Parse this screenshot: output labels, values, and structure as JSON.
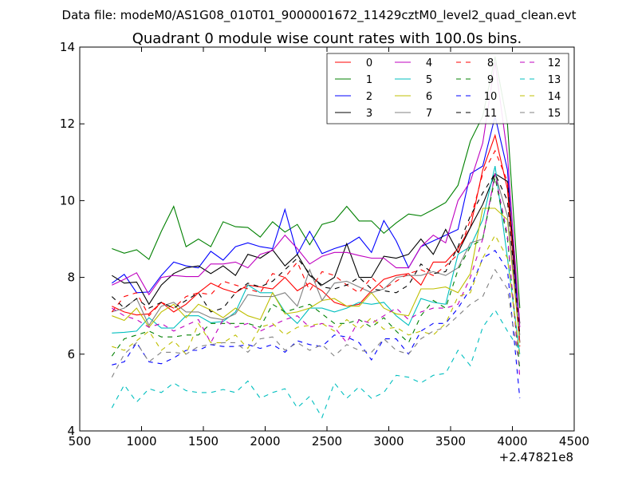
{
  "chart_data": {
    "type": "line",
    "suptitle": "Data file: modeM0/AS1G08_010T01_9000001672_11429cztM0_level2_quad_clean.evt",
    "title": "Quadrant 0 module wise count rates with 100.0s bins.",
    "xlabel": "",
    "ylabel": "",
    "x_offset_label": "+2.47821e8",
    "xlim": [
      500,
      4500
    ],
    "ylim": [
      4,
      14
    ],
    "xticks": [
      500,
      1000,
      1500,
      2000,
      2500,
      3000,
      3500,
      4000,
      4500
    ],
    "yticks": [
      4,
      6,
      8,
      10,
      12,
      14
    ],
    "legend_position": "top-right",
    "legend_columns": 4,
    "x": [
      760,
      860,
      960,
      1060,
      1160,
      1260,
      1360,
      1460,
      1560,
      1660,
      1760,
      1860,
      1960,
      2060,
      2160,
      2260,
      2360,
      2460,
      2560,
      2660,
      2760,
      2860,
      2960,
      3060,
      3160,
      3260,
      3360,
      3460,
      3560,
      3660,
      3760,
      3860,
      3960,
      4060
    ],
    "series": [
      {
        "name": "0",
        "color": "#ff0000",
        "dashed": false,
        "values": [
          7.25,
          7.1,
          7.02,
          7.05,
          7.35,
          7.1,
          7.3,
          7.6,
          7.85,
          7.7,
          7.6,
          7.8,
          7.75,
          7.7,
          8.0,
          7.65,
          7.85,
          7.65,
          7.35,
          7.25,
          7.3,
          7.65,
          7.95,
          8.05,
          8.1,
          7.8,
          8.4,
          8.4,
          8.75,
          9.3,
          10.8,
          11.7,
          10.3,
          6.3
        ]
      },
      {
        "name": "1",
        "color": "#008000",
        "dashed": false,
        "values": [
          8.75,
          8.63,
          8.72,
          8.47,
          9.2,
          9.85,
          8.8,
          9.0,
          8.8,
          9.45,
          9.32,
          9.3,
          9.05,
          9.45,
          9.18,
          9.38,
          8.85,
          9.38,
          9.47,
          9.85,
          9.47,
          9.47,
          9.15,
          9.42,
          9.65,
          9.6,
          9.77,
          9.95,
          10.4,
          11.55,
          12.2,
          13.75,
          12.0,
          7.2
        ]
      },
      {
        "name": "2",
        "color": "#0000ff",
        "dashed": false,
        "values": [
          7.85,
          8.08,
          7.6,
          7.62,
          8.05,
          8.4,
          8.3,
          8.25,
          8.68,
          8.45,
          8.8,
          8.9,
          8.8,
          8.75,
          9.77,
          8.6,
          9.2,
          8.62,
          8.75,
          8.85,
          9.05,
          8.65,
          9.48,
          8.95,
          8.25,
          8.8,
          8.95,
          9.1,
          9.25,
          10.7,
          10.9,
          12.2,
          10.8,
          6.3
        ]
      },
      {
        "name": "3",
        "color": "#000000",
        "dashed": false,
        "values": [
          8.05,
          7.85,
          7.88,
          7.3,
          7.8,
          8.1,
          8.25,
          8.3,
          8.1,
          8.3,
          8.05,
          8.6,
          8.5,
          8.72,
          8.3,
          8.6,
          8.05,
          7.8,
          8.0,
          8.88,
          8.0,
          8.0,
          8.55,
          8.5,
          8.6,
          9.0,
          8.6,
          9.25,
          8.65,
          9.3,
          9.9,
          10.7,
          10.5,
          6.8
        ]
      },
      {
        "name": "4",
        "color": "#bf00bf",
        "dashed": false,
        "values": [
          7.8,
          7.95,
          8.12,
          7.55,
          8.0,
          8.05,
          8.02,
          8.02,
          8.35,
          8.35,
          8.4,
          8.25,
          8.6,
          8.7,
          9.1,
          8.75,
          8.35,
          8.55,
          8.65,
          8.65,
          8.57,
          8.5,
          8.5,
          8.25,
          8.25,
          8.8,
          9.1,
          8.9,
          10.0,
          10.5,
          11.5,
          13.6,
          11.2,
          6.7
        ]
      },
      {
        "name": "5",
        "color": "#00bfbf",
        "dashed": false,
        "values": [
          6.55,
          6.57,
          6.6,
          6.95,
          6.68,
          6.68,
          7.0,
          7.0,
          6.82,
          6.85,
          7.1,
          7.8,
          7.6,
          7.6,
          7.1,
          6.8,
          7.2,
          7.2,
          7.1,
          7.2,
          7.35,
          7.3,
          7.35,
          7.0,
          6.75,
          7.45,
          7.35,
          7.3,
          8.6,
          8.8,
          9.5,
          10.9,
          8.5,
          6.0
        ]
      },
      {
        "name": "6",
        "color": "#bfbf00",
        "dashed": false,
        "values": [
          7.0,
          6.88,
          7.2,
          6.7,
          7.1,
          7.3,
          6.95,
          7.3,
          7.15,
          6.95,
          7.2,
          7.0,
          6.9,
          7.6,
          7.05,
          7.1,
          7.2,
          7.4,
          7.45,
          7.25,
          7.25,
          7.6,
          7.2,
          7.05,
          7.0,
          7.7,
          7.7,
          7.75,
          7.6,
          8.1,
          9.8,
          9.8,
          9.5,
          6.3
        ]
      },
      {
        "name": "7",
        "color": "#808080",
        "dashed": false,
        "values": [
          7.1,
          7.2,
          7.45,
          6.75,
          7.25,
          7.35,
          7.1,
          7.1,
          6.95,
          6.9,
          7.05,
          7.55,
          7.5,
          7.5,
          7.6,
          7.25,
          8.2,
          7.4,
          7.85,
          7.9,
          7.75,
          7.6,
          7.7,
          8.0,
          8.05,
          8.05,
          8.15,
          8.05,
          8.25,
          8.9,
          9.0,
          10.7,
          9.6,
          6.5
        ]
      },
      {
        "name": "8",
        "color": "#ff0000",
        "dashed": true,
        "values": [
          7.1,
          7.5,
          7.6,
          7.0,
          7.35,
          7.2,
          7.5,
          7.6,
          7.55,
          7.9,
          7.8,
          7.7,
          7.6,
          8.1,
          8.0,
          8.4,
          7.65,
          8.15,
          8.05,
          7.8,
          7.6,
          8.0,
          7.7,
          7.9,
          8.1,
          8.2,
          8.05,
          8.3,
          8.6,
          9.5,
          10.7,
          11.3,
          10.5,
          6.2
        ]
      },
      {
        "name": "9",
        "color": "#008000",
        "dashed": true,
        "values": [
          5.95,
          6.4,
          6.5,
          6.6,
          6.45,
          6.45,
          6.5,
          6.5,
          6.8,
          6.8,
          6.8,
          6.8,
          6.7,
          7.3,
          7.1,
          7.2,
          7.3,
          7.05,
          6.8,
          6.8,
          6.9,
          6.7,
          6.95,
          6.6,
          6.3,
          7.0,
          7.4,
          7.2,
          8.2,
          8.8,
          9.0,
          10.6,
          9.0,
          5.6
        ]
      },
      {
        "name": "10",
        "color": "#0000ff",
        "dashed": true,
        "values": [
          5.72,
          5.8,
          6.3,
          5.8,
          5.75,
          5.9,
          6.1,
          6.1,
          6.25,
          6.2,
          6.2,
          6.25,
          6.15,
          6.25,
          6.05,
          6.35,
          6.25,
          6.2,
          6.5,
          6.45,
          6.3,
          5.85,
          6.4,
          6.4,
          6.0,
          6.6,
          6.8,
          6.8,
          7.2,
          7.7,
          8.5,
          8.7,
          8.2,
          4.85
        ]
      },
      {
        "name": "11",
        "color": "#000000",
        "dashed": true,
        "values": [
          7.5,
          7.2,
          7.45,
          7.2,
          7.35,
          7.2,
          7.4,
          7.6,
          7.1,
          7.2,
          7.6,
          7.85,
          7.75,
          7.9,
          8.2,
          8.5,
          8.1,
          7.75,
          7.7,
          7.8,
          8.0,
          7.7,
          7.65,
          7.6,
          7.8,
          8.35,
          8.1,
          8.15,
          8.8,
          9.6,
          10.2,
          10.7,
          10.0,
          6.5
        ]
      },
      {
        "name": "12",
        "color": "#bf00bf",
        "dashed": true,
        "values": [
          7.2,
          7.0,
          6.9,
          6.7,
          6.8,
          6.6,
          6.75,
          6.9,
          6.3,
          6.9,
          6.7,
          6.8,
          6.6,
          6.75,
          6.9,
          7.0,
          6.7,
          6.8,
          6.7,
          6.3,
          6.9,
          6.8,
          7.0,
          7.2,
          6.9,
          7.1,
          7.2,
          7.2,
          7.3,
          8.0,
          9.0,
          10.7,
          9.1,
          5.4
        ]
      },
      {
        "name": "13",
        "color": "#00bfbf",
        "dashed": true,
        "values": [
          4.6,
          5.2,
          4.75,
          5.1,
          5.0,
          5.25,
          5.05,
          5.0,
          5.0,
          5.08,
          5.0,
          5.3,
          4.85,
          5.0,
          5.1,
          4.6,
          4.9,
          4.35,
          5.25,
          4.85,
          5.15,
          4.85,
          5.0,
          5.45,
          5.4,
          5.25,
          5.45,
          5.5,
          6.1,
          5.7,
          6.7,
          7.15,
          6.6,
          6.1
        ]
      },
      {
        "name": "14",
        "color": "#bfbf00",
        "dashed": true,
        "values": [
          6.2,
          6.1,
          6.35,
          6.6,
          6.1,
          6.35,
          6.0,
          6.8,
          6.3,
          6.3,
          6.5,
          6.15,
          6.7,
          6.8,
          6.5,
          6.7,
          6.75,
          6.8,
          6.6,
          6.9,
          6.65,
          6.95,
          6.65,
          6.7,
          6.5,
          6.6,
          6.5,
          6.8,
          7.5,
          7.6,
          8.5,
          9.1,
          8.5,
          5.9
        ]
      },
      {
        "name": "15",
        "color": "#808080",
        "dashed": true,
        "values": [
          5.4,
          6.0,
          6.3,
          5.8,
          6.05,
          6.05,
          6.0,
          6.2,
          6.25,
          6.3,
          6.3,
          6.05,
          6.4,
          6.45,
          6.1,
          6.3,
          6.1,
          6.25,
          5.95,
          6.25,
          6.1,
          6.05,
          6.4,
          6.1,
          6.0,
          6.4,
          6.6,
          6.7,
          7.0,
          7.3,
          7.5,
          8.2,
          7.7,
          5.6
        ]
      }
    ]
  }
}
